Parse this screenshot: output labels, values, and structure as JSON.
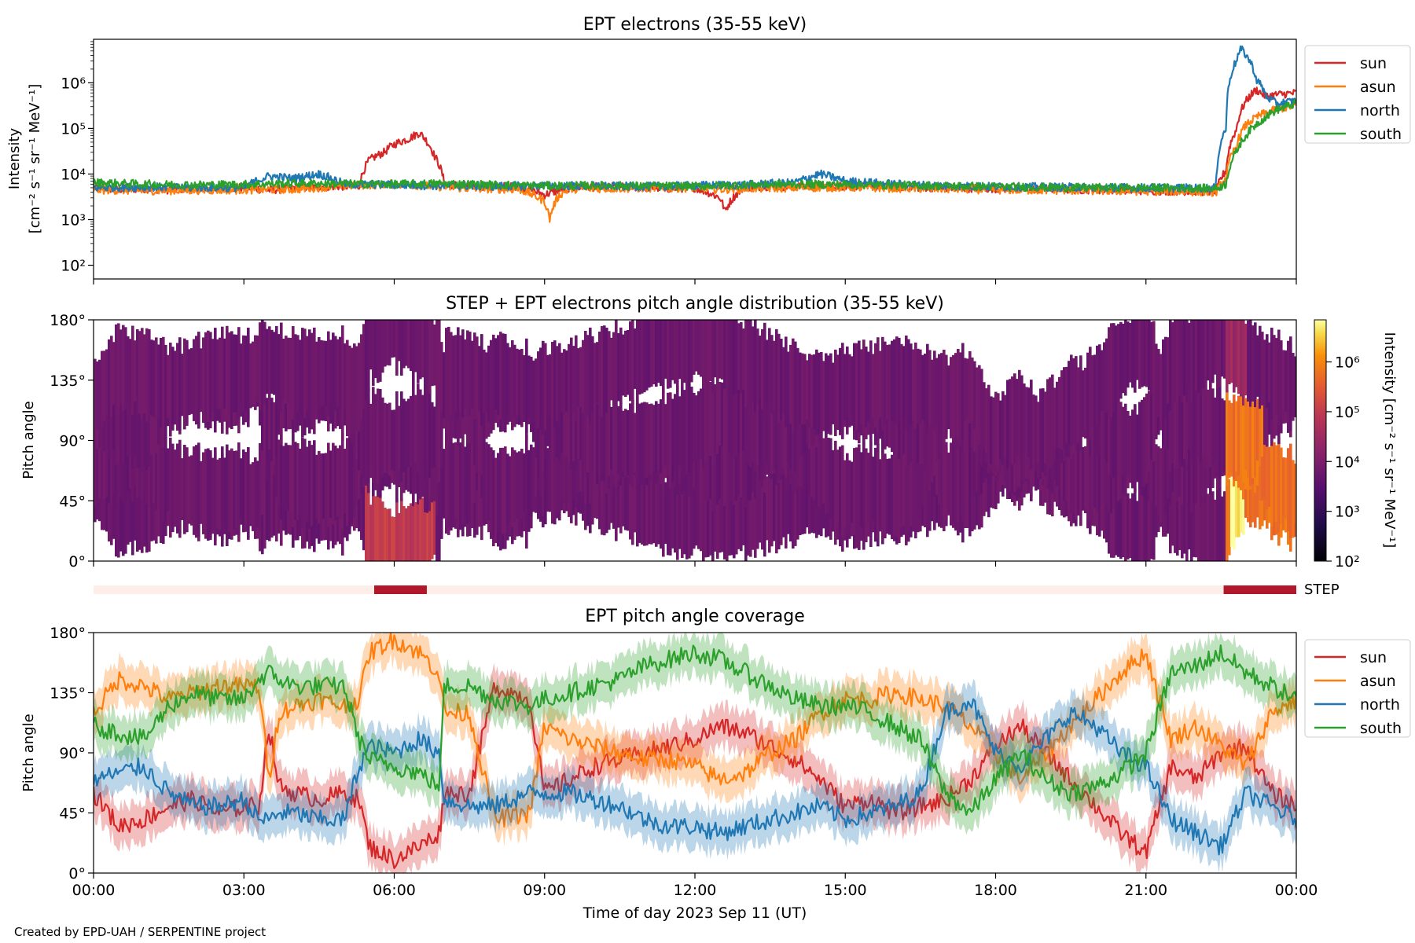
{
  "footer": "Created by EPD-UAH / SERPENTINE project",
  "colors": {
    "sun": "#d62728",
    "asun": "#ff7f0e",
    "north": "#1f77b4",
    "south": "#2ca02c",
    "step_bar": "#b2182b",
    "step_bg": "#fdeee9"
  },
  "chart_data": [
    {
      "type": "line",
      "title": "EPT electrons (35-55 keV)",
      "ylabel_line1": "Intensity",
      "ylabel_line2": "[cm⁻² s⁻¹ sr⁻¹ MeV⁻¹]",
      "yscale": "log",
      "ylim": [
        50,
        9000000
      ],
      "yticks": [
        {
          "v": 100,
          "label": "10²"
        },
        {
          "v": 1000,
          "label": "10³"
        },
        {
          "v": 10000,
          "label": "10⁴"
        },
        {
          "v": 100000,
          "label": "10⁵"
        },
        {
          "v": 1000000,
          "label": "10⁶"
        }
      ],
      "xlim_hours": [
        0,
        24
      ],
      "legend": "outside-right",
      "series": [
        {
          "name": "sun",
          "x": [
            0,
            0.5,
            1,
            1.5,
            2,
            2.5,
            3,
            3.5,
            4,
            4.5,
            5,
            5.3,
            5.5,
            5.8,
            6,
            6.3,
            6.5,
            6.8,
            7,
            7.5,
            8,
            8.5,
            9,
            9.5,
            10,
            10.5,
            11,
            11.5,
            12,
            12.5,
            12.6,
            13,
            13.5,
            14,
            15,
            16,
            17,
            18,
            19,
            20,
            21,
            22,
            22.4,
            22.6,
            22.8,
            23,
            23.2,
            23.4,
            23.6,
            24
          ],
          "y": [
            5000,
            4600,
            4800,
            4500,
            4900,
            4700,
            5100,
            4400,
            5000,
            5300,
            5400,
            5200,
            20000,
            30000,
            45000,
            60000,
            80000,
            25000,
            6000,
            5500,
            5400,
            5200,
            3500,
            5000,
            5200,
            5300,
            5100,
            4800,
            5000,
            3000,
            1500,
            5200,
            5400,
            5300,
            5500,
            5200,
            5000,
            4800,
            4600,
            4500,
            4300,
            4200,
            4000,
            12000,
            90000,
            400000,
            700000,
            500000,
            550000,
            600000
          ]
        },
        {
          "name": "asun",
          "x": [
            0,
            1,
            2,
            3,
            4,
            5,
            6,
            7,
            7.5,
            8,
            8.5,
            9,
            9.1,
            9.3,
            9.5,
            10,
            11,
            12,
            12.5,
            13,
            14,
            15,
            16,
            17,
            18,
            19,
            20,
            21,
            22,
            22.4,
            22.6,
            22.8,
            23,
            23.3,
            23.6,
            24
          ],
          "y": [
            4500,
            4300,
            4400,
            4500,
            4600,
            5500,
            6000,
            5200,
            4800,
            4700,
            4600,
            2500,
            1000,
            3500,
            4700,
            4800,
            4900,
            5000,
            4600,
            4800,
            5000,
            5100,
            4900,
            4700,
            4500,
            4400,
            4300,
            4200,
            4100,
            4000,
            8000,
            40000,
            120000,
            200000,
            260000,
            320000
          ]
        },
        {
          "name": "north",
          "x": [
            0,
            1,
            2,
            3,
            3.5,
            4,
            4.5,
            5,
            6,
            7,
            8,
            9,
            10,
            11,
            12,
            13,
            14,
            14.5,
            15,
            16,
            17,
            18,
            19,
            20,
            21,
            22,
            22.4,
            22.6,
            22.8,
            22.9,
            23,
            23.2,
            23.4,
            23.6,
            24
          ],
          "y": [
            5000,
            5200,
            5100,
            5000,
            9000,
            8000,
            10000,
            6000,
            5800,
            5500,
            5400,
            5600,
            5500,
            5300,
            5600,
            5800,
            6500,
            10000,
            7000,
            6000,
            5500,
            5300,
            5200,
            5100,
            5000,
            4900,
            5000,
            100000,
            3000000,
            5500000,
            4000000,
            1200000,
            500000,
            350000,
            400000
          ]
        },
        {
          "name": "south",
          "x": [
            0,
            1,
            2,
            3,
            4,
            5,
            6,
            7,
            8,
            9,
            10,
            11,
            12,
            13,
            14,
            15,
            16,
            17,
            18,
            19,
            20,
            21,
            22,
            22.4,
            22.6,
            22.8,
            23,
            23.3,
            23.6,
            24
          ],
          "y": [
            6500,
            6000,
            5800,
            5900,
            6300,
            6100,
            6000,
            6200,
            5800,
            5500,
            5600,
            5500,
            5400,
            5800,
            6000,
            5900,
            5700,
            5500,
            5300,
            5100,
            5000,
            5000,
            4900,
            4800,
            6000,
            30000,
            70000,
            150000,
            250000,
            350000
          ]
        }
      ]
    },
    {
      "type": "heatmap",
      "title": "STEP + EPT electrons pitch angle distribution (35-55 keV)",
      "ylabel": "Pitch angle",
      "yticks": [
        "0°",
        "45°",
        "90°",
        "135°",
        "180°"
      ],
      "colorbar_label": "Intensity [cm⁻² s⁻¹ sr⁻¹ MeV⁻¹]",
      "colorbar_ticks": [
        {
          "v": 100,
          "label": "10²"
        },
        {
          "v": 1000,
          "label": "10³"
        },
        {
          "v": 10000,
          "label": "10⁴"
        },
        {
          "v": 100000,
          "label": "10⁵"
        },
        {
          "v": 1000000,
          "label": "10⁶"
        }
      ],
      "clim": [
        100,
        7000000
      ],
      "colormap": "inferno",
      "background_level": 6000,
      "enhancements": [
        {
          "t_start": 5.4,
          "t_end": 6.8,
          "pa_low": 0,
          "pa_high": 30,
          "level": 100000
        },
        {
          "t_start": 22.6,
          "t_end": 24,
          "pa_low": 0,
          "pa_high": 80,
          "level": 600000
        },
        {
          "t_start": 22.7,
          "t_end": 23.1,
          "pa_low": 0,
          "pa_high": 25,
          "level": 5000000
        },
        {
          "t_start": 22.6,
          "t_end": 23.0,
          "pa_low": 90,
          "pa_high": 180,
          "level": 30000
        }
      ]
    },
    {
      "type": "bar",
      "label": "STEP",
      "intervals_hours": [
        [
          5.6,
          6.65
        ],
        [
          22.55,
          24
        ]
      ]
    },
    {
      "type": "line",
      "title": "EPT pitch angle coverage",
      "ylabel": "Pitch angle",
      "yticks": [
        "0°",
        "45°",
        "90°",
        "135°",
        "180°"
      ],
      "ylim": [
        0,
        180
      ],
      "xlim_hours": [
        0,
        24
      ],
      "xticks": [
        "00:00",
        "03:00",
        "06:00",
        "09:00",
        "12:00",
        "15:00",
        "18:00",
        "21:00",
        "00:00"
      ],
      "xlabel": "Time of day 2023 Sep 11 (UT)",
      "band_halfwidth_deg": 15,
      "legend": "outside-right",
      "series": [
        {
          "name": "sun",
          "x": [
            0,
            0.5,
            1,
            1.5,
            2,
            2.5,
            3,
            3.3,
            3.5,
            3.7,
            4,
            4.5,
            5,
            5.3,
            5.5,
            6,
            6.5,
            6.9,
            7,
            7.5,
            8,
            8.7,
            9,
            9.5,
            10,
            10.5,
            11,
            11.5,
            12,
            12.5,
            13,
            13.5,
            14,
            14.5,
            15,
            15.5,
            16,
            16.5,
            17,
            17.5,
            18,
            18.5,
            19,
            19.5,
            20,
            20.5,
            21,
            21.5,
            22,
            22.5,
            23,
            23.5,
            24
          ],
          "y": [
            60,
            35,
            40,
            50,
            55,
            45,
            50,
            50,
            110,
            65,
            60,
            55,
            60,
            55,
            20,
            10,
            20,
            30,
            60,
            60,
            140,
            130,
            60,
            70,
            80,
            85,
            90,
            95,
            100,
            110,
            105,
            95,
            85,
            70,
            50,
            55,
            45,
            50,
            55,
            70,
            95,
            110,
            90,
            70,
            50,
            30,
            15,
            80,
            70,
            90,
            95,
            60,
            50
          ]
        },
        {
          "name": "asun",
          "x": [
            0,
            0.5,
            1,
            1.5,
            2,
            2.5,
            3,
            3.3,
            3.5,
            3.7,
            4,
            4.5,
            5,
            5.3,
            5.5,
            6,
            6.5,
            6.9,
            7,
            7.5,
            8,
            8.7,
            9,
            9.5,
            10,
            10.5,
            11,
            11.5,
            12,
            12.5,
            13,
            13.5,
            14,
            14.5,
            15,
            15.5,
            16,
            16.5,
            17,
            17.5,
            18,
            18.5,
            19,
            19.5,
            20,
            20.5,
            21,
            21.5,
            22,
            22.5,
            23,
            23.5,
            24
          ],
          "y": [
            120,
            145,
            140,
            130,
            135,
            140,
            140,
            140,
            70,
            120,
            125,
            130,
            125,
            130,
            165,
            175,
            165,
            150,
            120,
            120,
            40,
            45,
            110,
            100,
            95,
            90,
            85,
            85,
            80,
            70,
            75,
            90,
            100,
            120,
            130,
            130,
            135,
            130,
            125,
            110,
            90,
            70,
            90,
            110,
            130,
            150,
            165,
            100,
            110,
            95,
            80,
            120,
            130
          ]
        },
        {
          "name": "north",
          "x": [
            0,
            0.5,
            1,
            1.5,
            2,
            2.5,
            3,
            3.3,
            3.5,
            3.7,
            4,
            4.5,
            5,
            5.3,
            5.5,
            6,
            6.5,
            6.9,
            7,
            7.5,
            8,
            8.7,
            9,
            9.5,
            10,
            10.5,
            11,
            11.5,
            12,
            12.5,
            13,
            13.5,
            14,
            14.5,
            15,
            15.5,
            16,
            16.5,
            17,
            17.5,
            18,
            18.5,
            19,
            19.5,
            20,
            20.5,
            21,
            21.5,
            22,
            22.5,
            23,
            23.5,
            24
          ],
          "y": [
            70,
            75,
            80,
            60,
            50,
            50,
            55,
            40,
            40,
            45,
            45,
            40,
            40,
            80,
            95,
            90,
            100,
            90,
            55,
            50,
            50,
            60,
            60,
            60,
            55,
            50,
            40,
            35,
            35,
            30,
            35,
            40,
            45,
            50,
            40,
            45,
            50,
            60,
            120,
            130,
            90,
            80,
            100,
            120,
            110,
            90,
            80,
            40,
            30,
            20,
            60,
            50,
            40
          ]
        },
        {
          "name": "south",
          "x": [
            0,
            0.5,
            1,
            1.5,
            2,
            2.5,
            3,
            3.3,
            3.5,
            3.7,
            4,
            4.5,
            5,
            5.3,
            5.5,
            6,
            6.5,
            6.9,
            7,
            7.5,
            8,
            8.7,
            9,
            9.5,
            10,
            10.5,
            11,
            11.5,
            12,
            12.5,
            13,
            13.5,
            14,
            14.5,
            15,
            15.5,
            16,
            16.5,
            17,
            17.5,
            18,
            18.5,
            19,
            19.5,
            20,
            20.5,
            21,
            21.5,
            22,
            22.5,
            23,
            23.5,
            24
          ],
          "y": [
            110,
            105,
            100,
            125,
            135,
            130,
            130,
            145,
            150,
            145,
            140,
            140,
            140,
            100,
            85,
            80,
            75,
            65,
            140,
            140,
            130,
            125,
            130,
            135,
            140,
            145,
            155,
            160,
            165,
            160,
            150,
            140,
            130,
            125,
            125,
            120,
            110,
            100,
            60,
            45,
            70,
            90,
            70,
            60,
            65,
            75,
            90,
            150,
            155,
            165,
            150,
            140,
            130
          ]
        }
      ]
    }
  ]
}
